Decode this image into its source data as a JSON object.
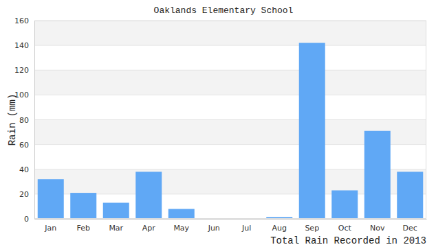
{
  "chart_data": {
    "type": "bar",
    "title": "Oaklands Elementary School",
    "xlabel": "Total Rain Recorded in 2013",
    "ylabel": "Rain (mm)",
    "categories": [
      "Jan",
      "Feb",
      "Mar",
      "Apr",
      "May",
      "Jun",
      "Jul",
      "Aug",
      "Sep",
      "Oct",
      "Nov",
      "Dec"
    ],
    "values": [
      32,
      21,
      13,
      38,
      8,
      0.5,
      0,
      1.5,
      142,
      23,
      71,
      38
    ],
    "color": "#60a8f5",
    "ylim": [
      0,
      160
    ],
    "yticks": [
      0,
      20,
      40,
      60,
      80,
      100,
      120,
      140,
      160
    ],
    "grid": true
  }
}
